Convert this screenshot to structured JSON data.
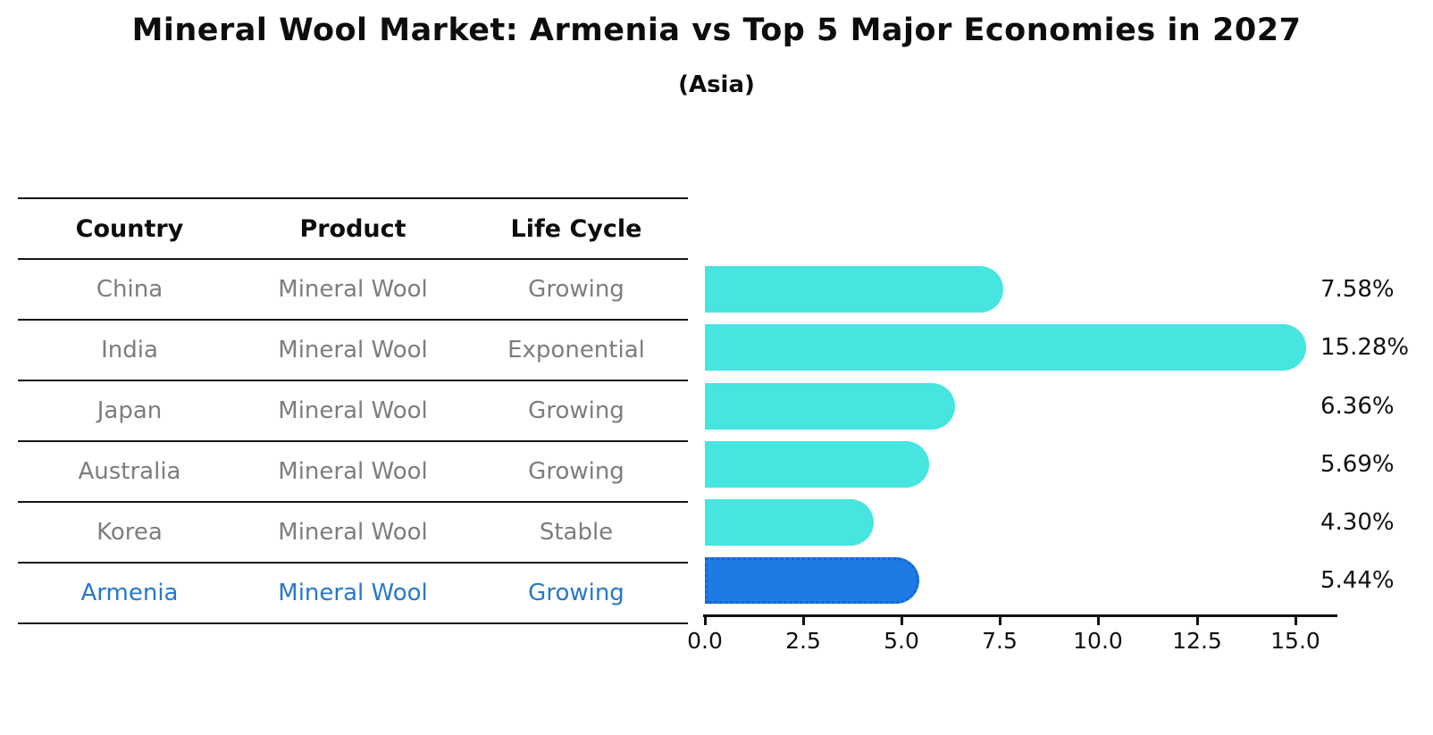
{
  "title": "Mineral Wool Market: Armenia vs Top 5 Major Economies in 2027",
  "subtitle": "(Asia)",
  "table": {
    "headers": [
      "Country",
      "Product",
      "Life Cycle"
    ],
    "rows": [
      {
        "country": "China",
        "product": "Mineral Wool",
        "life_cycle": "Growing",
        "highlighted": false
      },
      {
        "country": "India",
        "product": "Mineral Wool",
        "life_cycle": "Exponential",
        "highlighted": false
      },
      {
        "country": "Japan",
        "product": "Mineral Wool",
        "life_cycle": "Growing",
        "highlighted": false
      },
      {
        "country": "Australia",
        "product": "Mineral Wool",
        "life_cycle": "Growing",
        "highlighted": false
      },
      {
        "country": "Korea",
        "product": "Mineral Wool",
        "life_cycle": "Stable",
        "highlighted": false
      },
      {
        "country": "Armenia",
        "product": "Mineral Wool",
        "life_cycle": "Growing",
        "highlighted": true
      }
    ]
  },
  "chart_data": {
    "type": "bar",
    "orientation": "horizontal",
    "title": "Mineral Wool Market: Armenia vs Top 5 Major Economies in 2027",
    "subtitle": "(Asia)",
    "categories": [
      "China",
      "India",
      "Japan",
      "Australia",
      "Korea",
      "Armenia"
    ],
    "values": [
      7.58,
      15.28,
      6.36,
      5.69,
      4.3,
      5.44
    ],
    "value_labels": [
      "7.58%",
      "15.28%",
      "6.36%",
      "5.69%",
      "4.30%",
      "5.44%"
    ],
    "x_ticks": [
      "0.0",
      "2.5",
      "5.0",
      "7.5",
      "10.0",
      "12.5",
      "15.0"
    ],
    "xlim": [
      0,
      16.1
    ],
    "grid": false,
    "legend": false,
    "highlight_index": 5,
    "colors": {
      "bar": "#46e5e0",
      "highlight_bar": "#1e7ae4",
      "highlight_bar_border": "#1565cd",
      "highlight_text": "#2878c8",
      "row_text": "#7d7d7d",
      "axis": "#111111"
    }
  }
}
